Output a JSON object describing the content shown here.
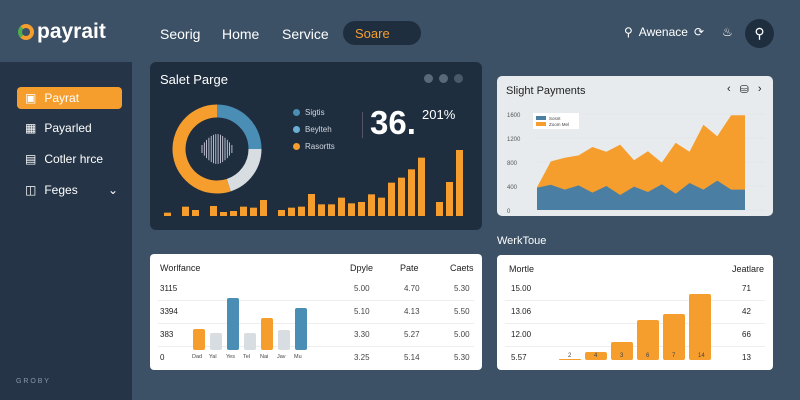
{
  "header": {
    "brand": "payrait",
    "nav": [
      "Seorig",
      "Home",
      "Service"
    ],
    "active_nav": "Soare",
    "account": "Awenace",
    "icons": [
      "search-icon",
      "refresh-icon",
      "bell-icon",
      "search-icon"
    ]
  },
  "sidebar": {
    "items": [
      {
        "label": "Payrat",
        "icon": "wallet-icon",
        "active": true
      },
      {
        "label": "Payarled",
        "icon": "document-icon"
      },
      {
        "label": "Cotler hrce",
        "icon": "calendar-icon"
      },
      {
        "label": "Feges",
        "icon": "pages-icon",
        "expandable": true
      }
    ],
    "footer": "G R O B Y"
  },
  "sales": {
    "title": "Salet Parge",
    "legend": [
      {
        "label": "Sigtis",
        "color": "#4a8db5"
      },
      {
        "label": "Beylteh",
        "color": "#6aaed6"
      },
      {
        "label": "Rasortts",
        "color": "#f59e2e"
      }
    ],
    "big_value": "36.",
    "big_sup": "201%",
    "donut": [
      {
        "value": 25,
        "color": "#4a8db5"
      },
      {
        "value": 20,
        "color": "#d8dde2"
      },
      {
        "value": 55,
        "color": "#f59e2e"
      }
    ],
    "bars": [
      10,
      28,
      18,
      30,
      12,
      15,
      28,
      25,
      48,
      18,
      25,
      28,
      66,
      35,
      35,
      55,
      38,
      42,
      65,
      55,
      100,
      115,
      140,
      175,
      42,
      102,
      198
    ]
  },
  "payments": {
    "title": "Slight Payments",
    "legend": [
      "Sosnt",
      "Zoom Mel"
    ],
    "yticks": [
      "1600",
      "1200",
      "800",
      "400",
      "0"
    ],
    "chart_data": {
      "type": "area",
      "ylim": [
        0,
        1600
      ],
      "series": [
        {
          "name": "Sosnt",
          "color": "#4a7fa3",
          "values": [
            370,
            420,
            340,
            410,
            290,
            400,
            250,
            390,
            300,
            430,
            270,
            450,
            340,
            490,
            340,
            340
          ]
        },
        {
          "name": "Zoom Mel",
          "color": "#f59e2e",
          "values": [
            380,
            810,
            870,
            910,
            1050,
            970,
            1090,
            830,
            980,
            790,
            1120,
            970,
            1420,
            1230,
            1580,
            1580
          ]
        }
      ]
    }
  },
  "table_left": {
    "title": "Worlfance",
    "columns": [
      "Dpyle",
      "Pate",
      "Caets"
    ],
    "row_labels": [
      "3115",
      "3394",
      "383",
      "0"
    ],
    "rows": [
      [
        "5.00",
        "4.70",
        "5.30"
      ],
      [
        "5.10",
        "4.13",
        "5.50"
      ],
      [
        "3.30",
        "5.27",
        "5.00"
      ],
      [
        "3.25",
        "5.14",
        "5.30"
      ]
    ],
    "chart_data": {
      "type": "bar",
      "categories": [
        "Dad",
        "Yal",
        "Yes",
        "Tel",
        "Nai",
        "Jav",
        "Mu"
      ],
      "values": [
        0.4,
        0.33,
        1,
        0.33,
        0.62,
        0.38,
        0.8
      ],
      "colors": [
        "#f59e2e",
        "#d8dde2",
        "#4a8db5",
        "#d8dde2",
        "#f59e2e",
        "#d8dde2",
        "#4a8db5"
      ]
    }
  },
  "worktone": {
    "heading": "WerkToue",
    "col_left": "Mortle",
    "col_right": "Jeatlare",
    "row_labels": [
      "15.00",
      "13.06",
      "12.00",
      "5.57"
    ],
    "right_values": [
      "71",
      "42",
      "66",
      "13"
    ],
    "chart_data": {
      "type": "bar",
      "categories": [
        "2",
        "4",
        "3",
        "6",
        "7",
        "14"
      ],
      "values": [
        3,
        25,
        55,
        120,
        138,
        198
      ]
    }
  }
}
